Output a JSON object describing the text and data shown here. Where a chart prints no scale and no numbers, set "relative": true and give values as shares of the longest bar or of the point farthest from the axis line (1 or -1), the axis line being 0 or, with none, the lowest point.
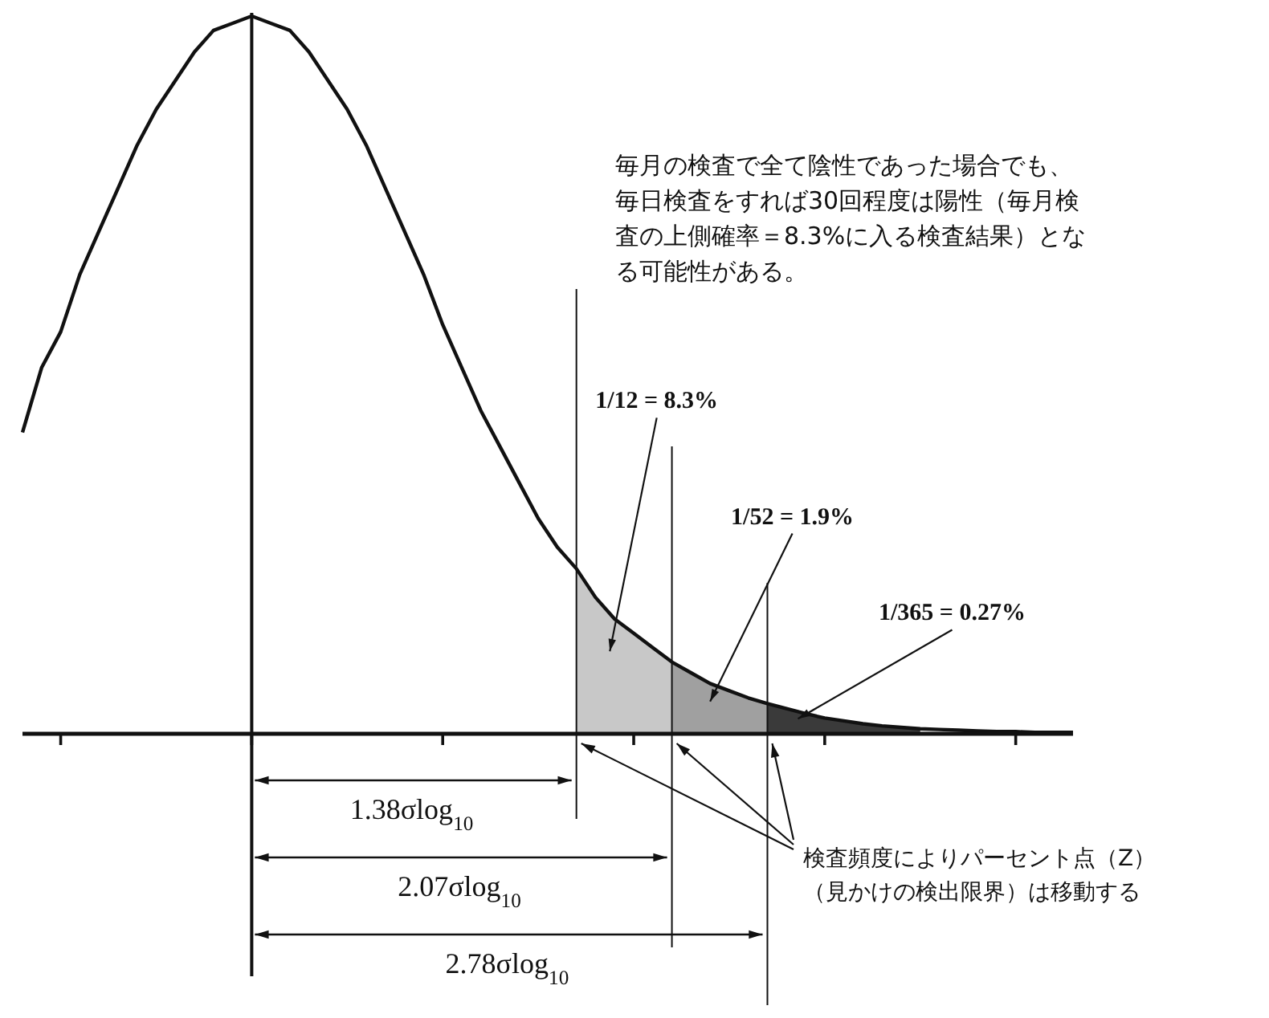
{
  "chart_data": {
    "type": "line",
    "relative": true,
    "marker": "none",
    "categories": [
      null,
      null,
      null,
      null,
      null,
      null,
      null,
      null,
      null,
      null,
      null,
      null,
      null,
      null,
      null,
      null,
      null,
      null,
      null,
      null,
      null,
      null,
      null,
      null,
      null,
      null,
      null,
      null,
      null,
      null,
      null,
      null,
      null,
      null,
      null,
      null,
      null,
      null,
      null,
      null,
      null,
      null,
      null,
      null,
      null,
      null,
      null,
      null,
      null,
      null,
      null,
      null,
      null,
      null,
      null,
      null
    ],
    "series": [
      {
        "color": "#111111",
        "values": [
          0.42,
          0.51,
          0.56,
          0.64,
          0.7,
          0.76,
          0.82,
          0.87,
          0.91,
          0.95,
          0.98,
          0.99,
          1,
          0.99,
          0.98,
          0.95,
          0.91,
          0.87,
          0.82,
          0.76,
          0.7,
          0.64,
          0.57,
          0.51,
          0.45,
          0.4,
          0.35,
          0.3,
          0.26,
          0.23,
          0.19,
          0.16,
          0.14,
          0.12,
          0.1,
          0.085,
          0.07,
          0.06,
          0.05,
          0.042,
          0.035,
          0.028,
          0.022,
          0.018,
          0.014,
          0.011,
          0.009,
          0.007,
          0.006,
          0.005,
          0.004,
          0.003,
          0.003,
          0.002,
          0.002,
          0.002
        ]
      },
      {
        "type": "area",
        "name": "1/12 = 8.3%",
        "color": "#c8c8c8",
        "values": [
          null,
          null,
          null,
          null,
          null,
          null,
          null,
          null,
          null,
          null,
          null,
          null,
          null,
          null,
          null,
          null,
          null,
          null,
          null,
          null,
          null,
          null,
          null,
          null,
          null,
          null,
          null,
          null,
          null,
          0.23,
          0.19,
          0.16,
          0.14,
          0.12,
          0.1,
          null,
          null,
          null,
          null,
          null,
          null,
          null,
          null,
          null,
          null,
          null,
          null,
          null,
          null,
          null,
          null,
          null,
          null,
          null,
          null,
          null
        ]
      },
      {
        "type": "area",
        "name": "1/52 = 1.9%",
        "color": "#a0a0a0",
        "values": [
          null,
          null,
          null,
          null,
          null,
          null,
          null,
          null,
          null,
          null,
          null,
          null,
          null,
          null,
          null,
          null,
          null,
          null,
          null,
          null,
          null,
          null,
          null,
          null,
          null,
          null,
          null,
          null,
          null,
          null,
          null,
          null,
          null,
          null,
          0.1,
          0.085,
          0.07,
          0.06,
          0.05,
          0.042,
          null,
          null,
          null,
          null,
          null,
          null,
          null,
          null,
          null,
          null,
          null,
          null,
          null,
          null,
          null,
          null
        ]
      },
      {
        "type": "area",
        "name": "1/365 = 0.27%",
        "color": "#3a3a3a",
        "values": [
          null,
          null,
          null,
          null,
          null,
          null,
          null,
          null,
          null,
          null,
          null,
          null,
          null,
          null,
          null,
          null,
          null,
          null,
          null,
          null,
          null,
          null,
          null,
          null,
          null,
          null,
          null,
          null,
          null,
          null,
          null,
          null,
          null,
          null,
          null,
          null,
          null,
          null,
          null,
          0.042,
          0.035,
          0.028,
          0.022,
          0.018,
          0.014,
          0.011,
          0.009,
          0.007,
          null,
          null,
          null,
          null,
          null,
          null,
          null,
          null
        ]
      }
    ],
    "annotations": [
      "毎月の検査で全て陰性であった場合でも、毎日検査をすれば30回程度は陽性（毎月検査の上側確率＝8.3%に入る検査結果）となる可能性がある。",
      "検査頻度によりパーセント点（Z）（見かけの検出限界）は移動する",
      "1.38σlog$_{10}$",
      "2.07σlog$_{10}$",
      "2.78σlog$_{10}$"
    ]
  }
}
